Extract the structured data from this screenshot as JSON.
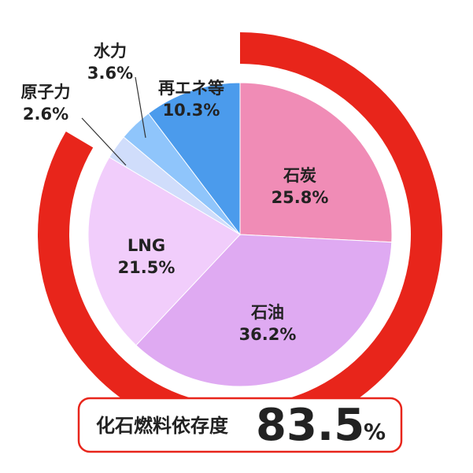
{
  "chart_data": {
    "type": "pie",
    "categories": [
      "石炭",
      "石油",
      "LNG",
      "原子力",
      "水力",
      "再エネ等"
    ],
    "values": [
      25.8,
      36.2,
      21.5,
      2.6,
      3.6,
      10.3
    ],
    "value_labels": [
      "25.8%",
      "36.2%",
      "21.5%",
      "2.6%",
      "3.6%",
      "10.3%"
    ],
    "colors": [
      "#f08cb6",
      "#dfaaf2",
      "#f1cdfb",
      "#d0ddfb",
      "#8fc5fb",
      "#4b9bec"
    ],
    "ring_color": "#e8251b",
    "fossil_label": "化石燃料依存度",
    "fossil_share": 83.5,
    "fossil_unit": "%"
  }
}
